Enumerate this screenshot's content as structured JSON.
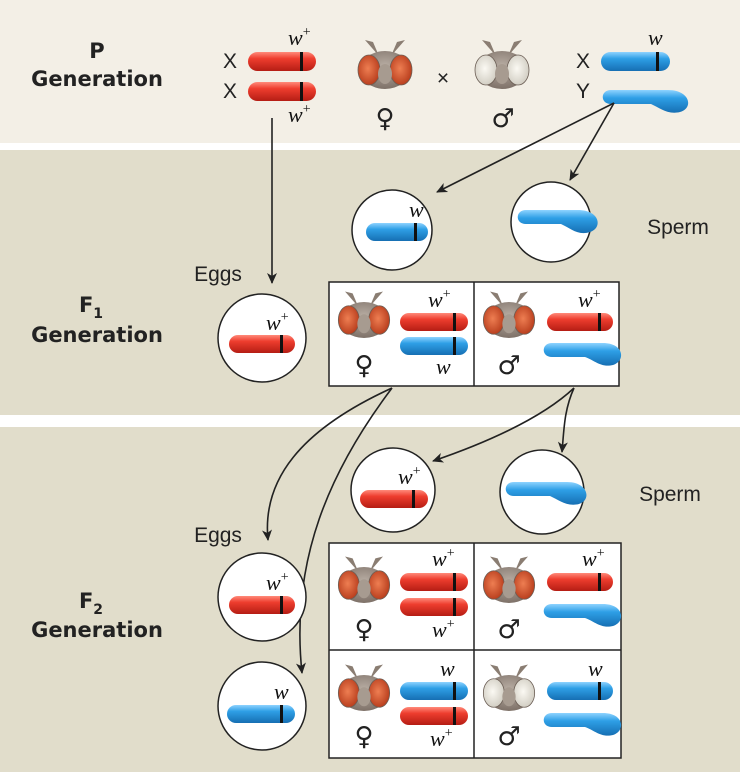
{
  "generations": {
    "p": {
      "line1": "P",
      "line2": "Generation"
    },
    "f1": {
      "letter": "F",
      "sub": "1",
      "line2": "Generation"
    },
    "f2": {
      "letter": "F",
      "sub": "2",
      "line2": "Generation"
    }
  },
  "labels": {
    "x": "X",
    "y": "Y",
    "eggs": "Eggs",
    "sperm": "Sperm",
    "cross": "×",
    "female": "♀",
    "male": "♂"
  },
  "alleles": {
    "w": "w",
    "plus": "+"
  },
  "colors": {
    "p_band": "#f3efe6",
    "f_band": "#e1ddcb",
    "red_chromosome": "#e8342a",
    "blue_chromosome": "#2a9be0",
    "red_eye": "#d4542a",
    "white_eye": "#e9e6de",
    "fly_head": "#9c8f84"
  },
  "crosses": {
    "p_female_eye": "red-eye",
    "p_male_eye": "white-eye",
    "f1_female_eye": "red-eye",
    "f1_male_eye": "red-eye",
    "f2_female1_eye": "red-eye",
    "f2_male1_eye": "red-eye",
    "f2_female2_eye": "red-eye",
    "f2_male2_eye": "white-eye"
  }
}
